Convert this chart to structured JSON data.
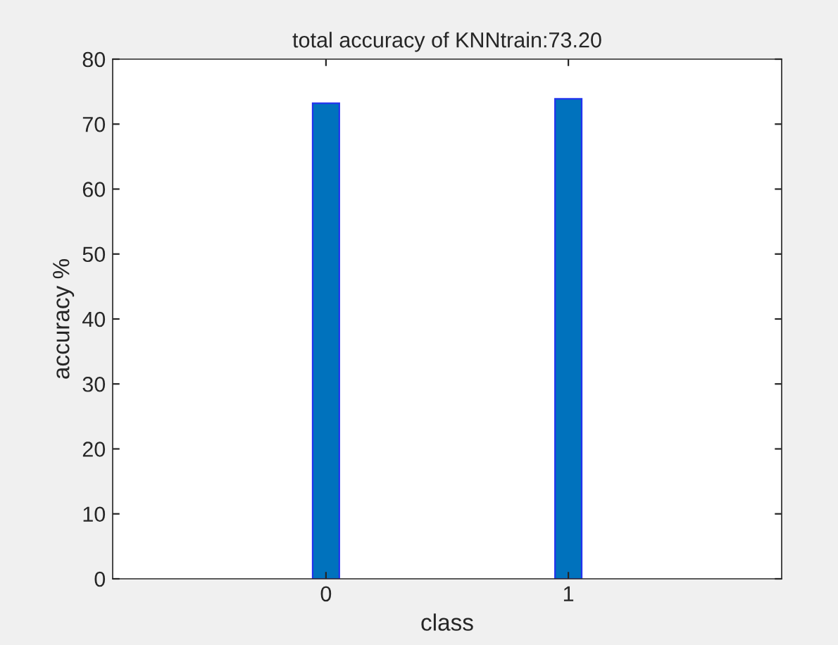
{
  "chart_data": {
    "type": "bar",
    "title": "total accuracy of KNNtrain:73.20",
    "xlabel": "class",
    "ylabel": "accuracy %",
    "x": [
      0,
      1
    ],
    "values": [
      73.2,
      73.9
    ],
    "color": "#0072bd",
    "xlim": [
      -0.88,
      1.88
    ],
    "xticks": [
      0,
      1
    ],
    "ylim": [
      0,
      80
    ],
    "yticks": [
      0,
      10,
      20,
      30,
      40,
      50,
      60,
      70,
      80
    ],
    "grid": false,
    "legend": false
  }
}
